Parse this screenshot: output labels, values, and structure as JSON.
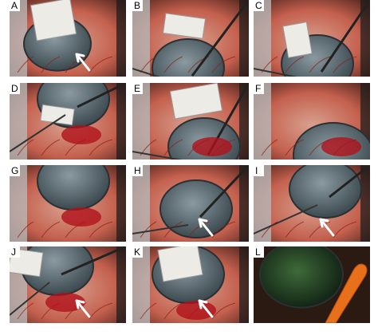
{
  "panels": [
    "A",
    "B",
    "C",
    "D",
    "E",
    "F",
    "G",
    "H",
    "I",
    "J",
    "K",
    "L"
  ]
}
